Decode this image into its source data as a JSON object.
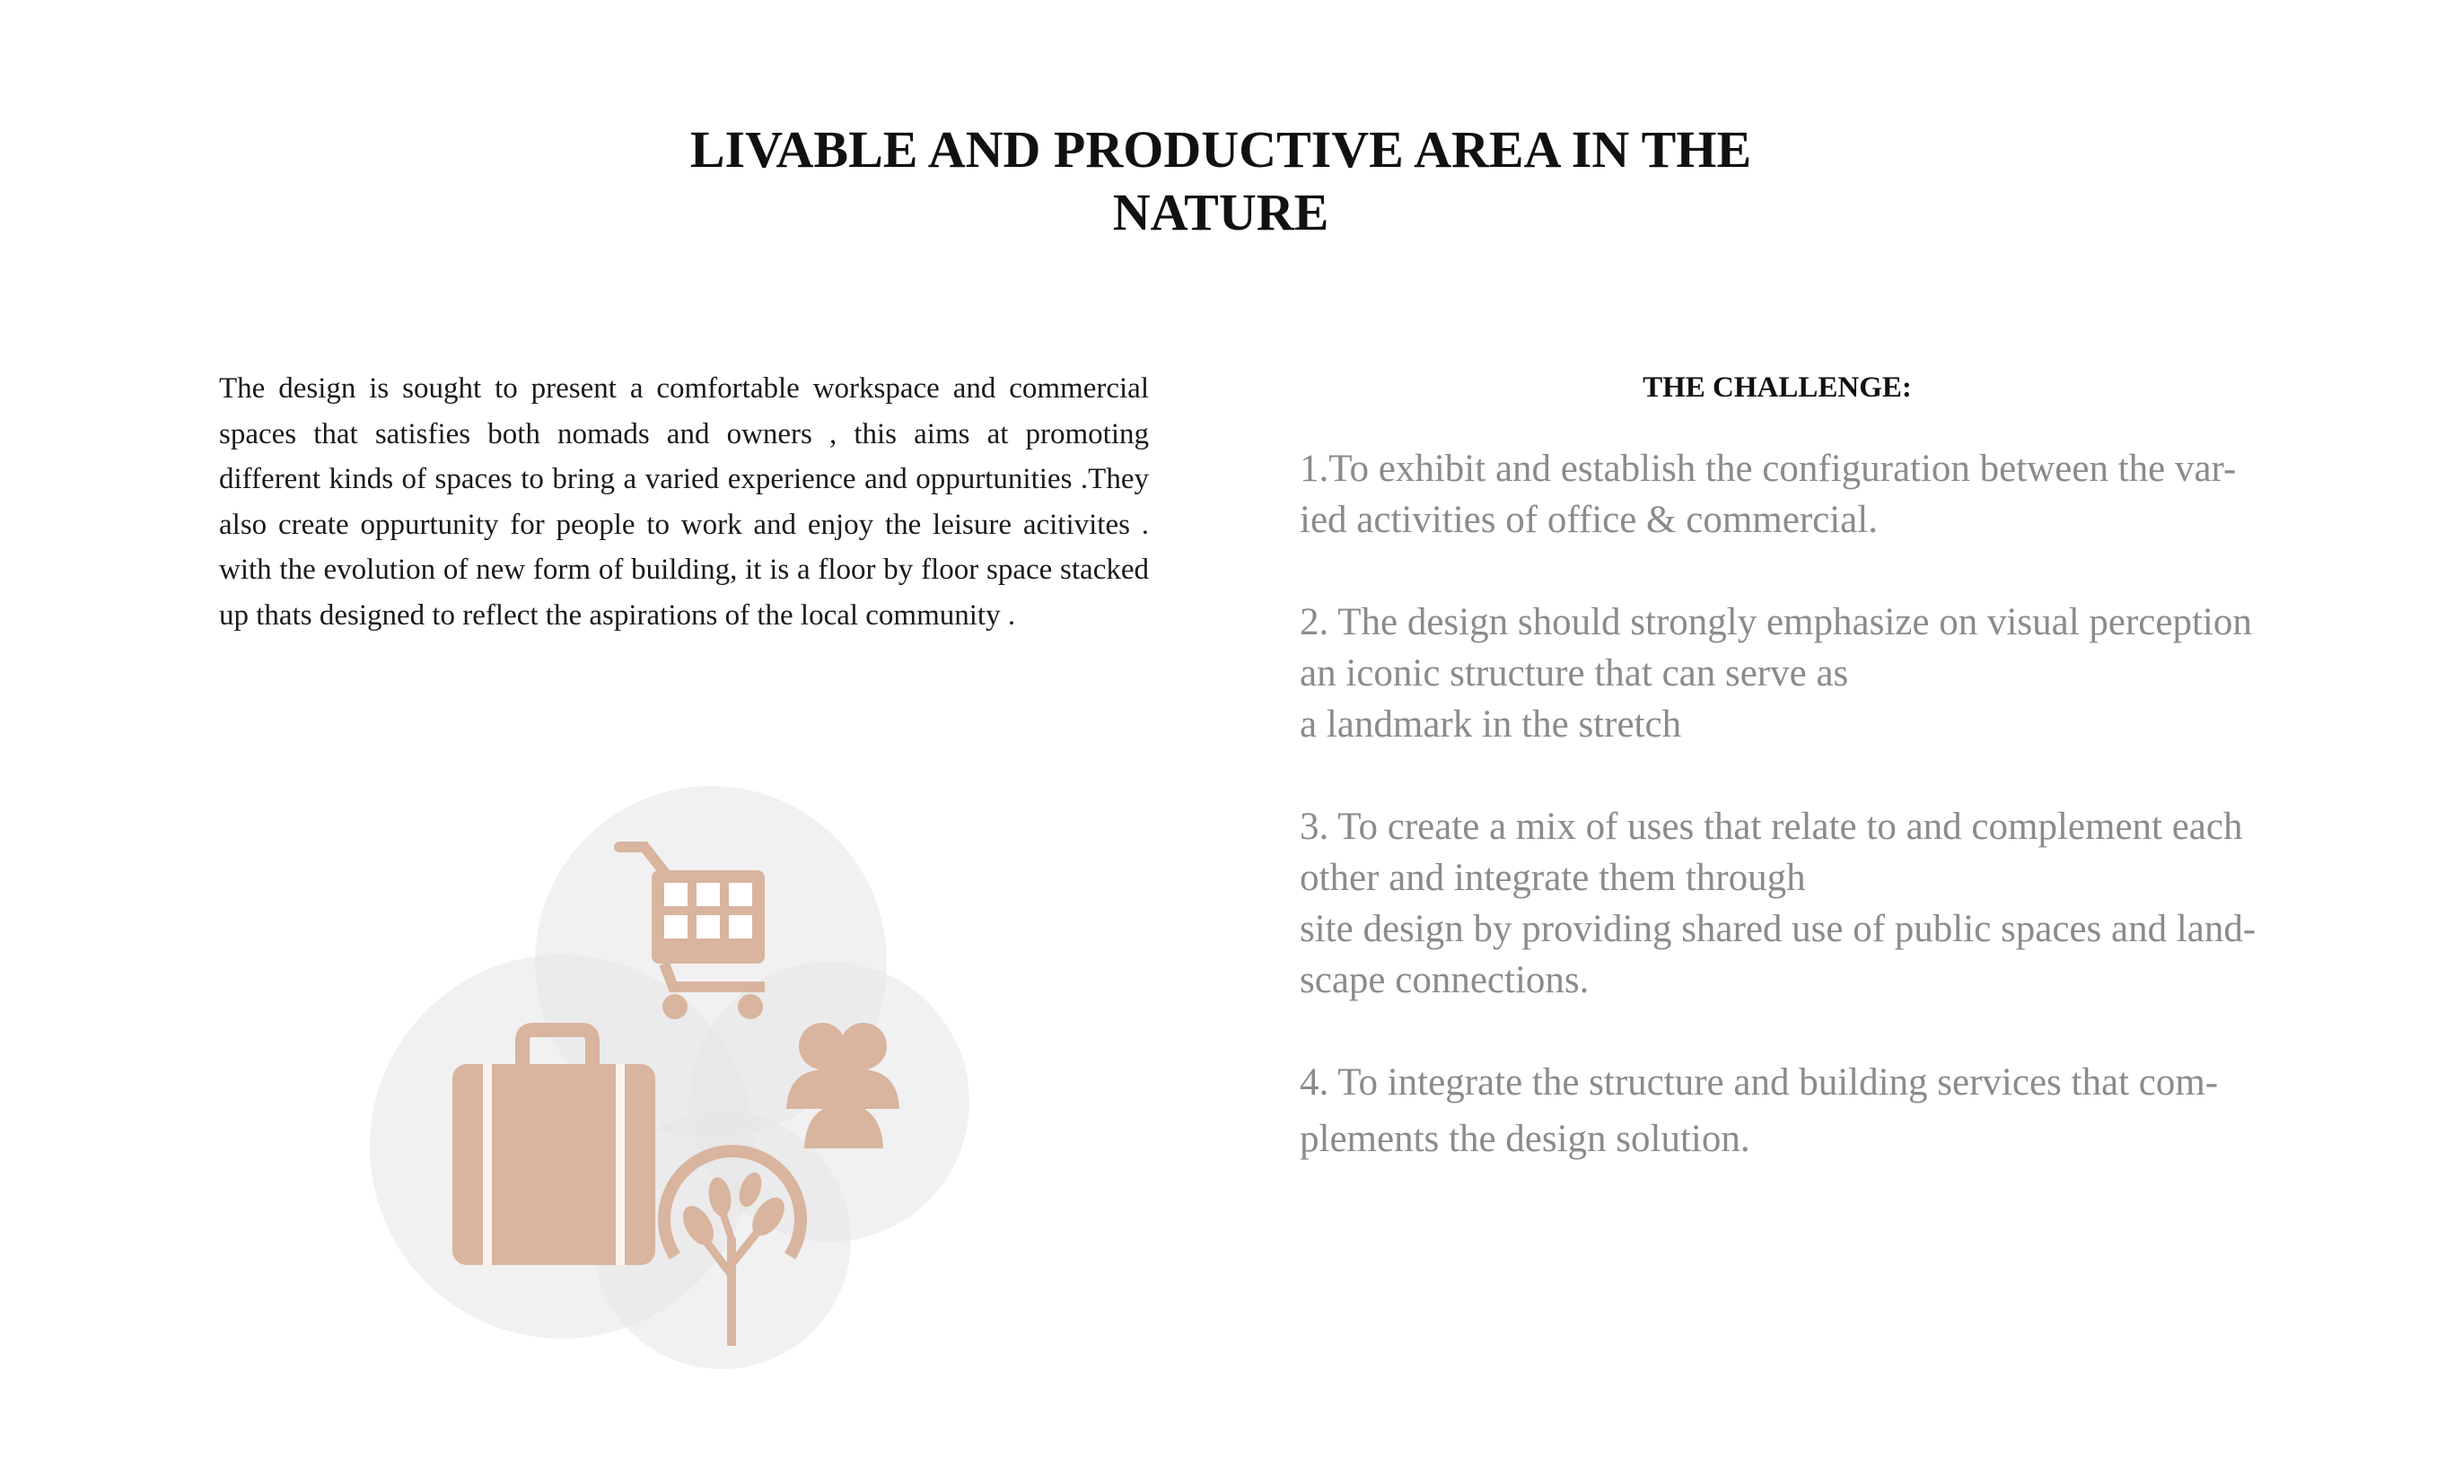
{
  "title": {
    "line1": "LIVABLE AND PRODUCTIVE AREA IN THE",
    "line2": "NATURE"
  },
  "intro": {
    "text": "The design is sought to present a comfortable workspace and commercial spaces that satisfies both nomads and owners , this aims at promoting different kinds of spaces to bring a varied experience and oppurtunities .They also create oppurtunity for people to work and enjoy the leisure acitivites . with the evolution of new form of building, it is a floor by floor space stacked up thats designed to reflect the aspirations of the local community ."
  },
  "challenge": {
    "heading": "THE CHALLENGE:",
    "items": [
      {
        "lines": [
          "1.To exhibit and establish the configuration between the var-",
          "ied activities of office & commercial."
        ]
      },
      {
        "lines": [
          "2. The design should strongly emphasize on visual perception",
          "an iconic structure that can serve as",
          "a landmark in the stretch"
        ]
      },
      {
        "lines": [
          "3. To create a mix of uses that relate to and complement each",
          "other and integrate them through",
          "site design by providing shared use of public spaces and land-",
          "scape connections."
        ]
      },
      {
        "lines": [
          "4. To integrate the structure and building services that com-",
          "plements the design solution."
        ]
      }
    ]
  },
  "icons": {
    "accent_color": "#d9b49f",
    "circle_color": "#e6e6e6",
    "items": [
      "shopping-cart-icon",
      "suitcase-icon",
      "people-group-icon",
      "tree-icon"
    ]
  }
}
